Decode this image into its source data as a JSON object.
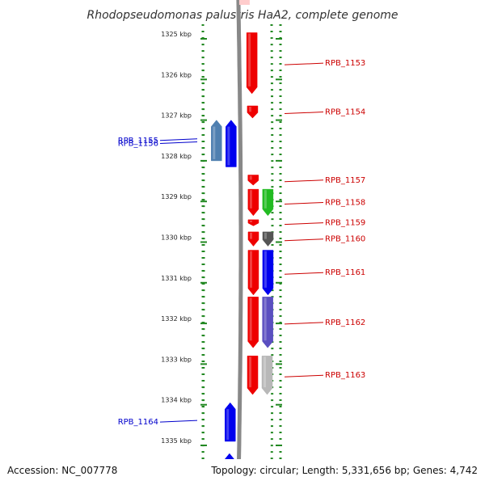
{
  "title": "Rhodopseudomonas palustris HaA2, complete genome",
  "footer": {
    "accession": "Accession: NC_007778",
    "topology": "Topology: circular; Length: 5,331,656 bp; Genes: 4,742"
  },
  "colors": {
    "red": "#ee0000",
    "blue": "#0000ee",
    "steel": "#4f7fb0",
    "green": "#22bb22",
    "darkgray": "#555555",
    "slateblue": "#5a4fc0",
    "lightgray": "#b8b8b8",
    "tick": "#228822",
    "backbone": "#888888"
  },
  "ticks": [
    {
      "kbp": 1325,
      "label": "1325 kbp"
    },
    {
      "kbp": 1326,
      "label": "1326 kbp"
    },
    {
      "kbp": 1327,
      "label": "1327 kbp"
    },
    {
      "kbp": 1328,
      "label": "1328 kbp"
    },
    {
      "kbp": 1329,
      "label": "1329 kbp"
    },
    {
      "kbp": 1330,
      "label": "1330 kbp"
    },
    {
      "kbp": 1331,
      "label": "1331 kbp"
    },
    {
      "kbp": 1332,
      "label": "1332 kbp"
    },
    {
      "kbp": 1333,
      "label": "1333 kbp"
    },
    {
      "kbp": 1334,
      "label": "1334 kbp"
    },
    {
      "kbp": 1335,
      "label": "1335 kbp"
    }
  ],
  "genes": [
    {
      "id": "g1153",
      "label": "RPB_1153",
      "start": 1324.85,
      "end": 1326.35,
      "strand": "+",
      "track": "inner-r",
      "color": "red"
    },
    {
      "id": "g1154",
      "label": "RPB_1154",
      "start": 1326.65,
      "end": 1326.95,
      "strand": "+",
      "track": "inner-r",
      "color": "red"
    },
    {
      "id": "g1155",
      "label": "RPB_1155",
      "start": 1327.0,
      "end": 1328.0,
      "strand": "-",
      "track": "outer-l",
      "color": "steel"
    },
    {
      "id": "g1156",
      "label": "RPB_1156",
      "start": 1327.0,
      "end": 1328.15,
      "strand": "-",
      "track": "inner-l",
      "color": "blue"
    },
    {
      "id": "g1157",
      "label": "RPB_1157",
      "start": 1328.35,
      "end": 1328.6,
      "strand": "+",
      "track": "inner-r",
      "color": "red"
    },
    {
      "id": "g1158",
      "label": "RPB_1158",
      "start": 1328.7,
      "end": 1329.35,
      "strand": "+",
      "track": "inner-r",
      "color": "red"
    },
    {
      "id": "g1158b",
      "label": "",
      "start": 1328.7,
      "end": 1329.35,
      "strand": "+",
      "track": "outer-r",
      "color": "green"
    },
    {
      "id": "g1159",
      "label": "RPB_1159",
      "start": 1329.45,
      "end": 1329.6,
      "strand": "+",
      "track": "inner-r",
      "color": "red"
    },
    {
      "id": "g1160",
      "label": "RPB_1160",
      "start": 1329.75,
      "end": 1330.1,
      "strand": "+",
      "track": "inner-r",
      "color": "red"
    },
    {
      "id": "g1160b",
      "label": "",
      "start": 1329.75,
      "end": 1330.1,
      "strand": "+",
      "track": "outer-r",
      "color": "darkgray"
    },
    {
      "id": "g1161",
      "label": "RPB_1161",
      "start": 1330.2,
      "end": 1331.3,
      "strand": "+",
      "track": "inner-r",
      "color": "red"
    },
    {
      "id": "g1161b",
      "label": "",
      "start": 1330.2,
      "end": 1331.3,
      "strand": "+",
      "track": "outer-r",
      "color": "blue"
    },
    {
      "id": "g1162",
      "label": "RPB_1162",
      "start": 1331.35,
      "end": 1332.6,
      "strand": "+",
      "track": "inner-r",
      "color": "red"
    },
    {
      "id": "g1162b",
      "label": "",
      "start": 1331.35,
      "end": 1332.6,
      "strand": "+",
      "track": "outer-r",
      "color": "slateblue"
    },
    {
      "id": "g1163",
      "label": "RPB_1163",
      "start": 1332.8,
      "end": 1333.75,
      "strand": "+",
      "track": "inner-r",
      "color": "red"
    },
    {
      "id": "g1163b",
      "label": "",
      "start": 1332.8,
      "end": 1333.75,
      "strand": "+",
      "track": "outer-r",
      "color": "lightgray"
    },
    {
      "id": "g1164",
      "label": "RPB_1164",
      "start": 1333.95,
      "end": 1334.9,
      "strand": "-",
      "track": "inner-l",
      "color": "blue"
    },
    {
      "id": "g1165",
      "label": "",
      "start": 1335.2,
      "end": 1335.9,
      "strand": "-",
      "track": "inner-l",
      "color": "blue"
    }
  ]
}
